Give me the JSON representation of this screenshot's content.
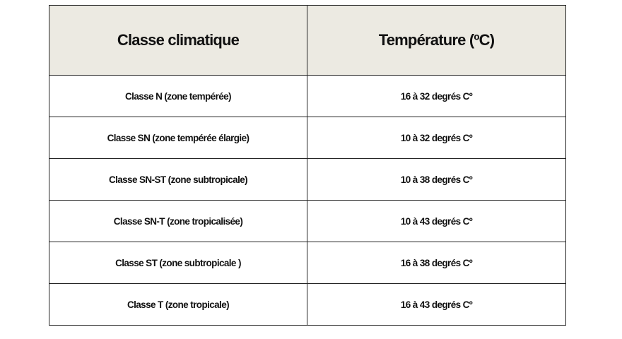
{
  "table": {
    "headers": [
      "Classe climatique",
      "Température (ºC)"
    ],
    "rows": [
      [
        "Classe N (zone tempérée)",
        "16 à 32 degrés Cº"
      ],
      [
        "Classe SN (zone tempérée élargie)",
        "10 à 32 degrés Cº"
      ],
      [
        "Classe SN-ST (zone subtropicale)",
        "10 à 38 degrés Cº"
      ],
      [
        "Classe SN-T (zone tropicalisée)",
        "10 à 43 degrés Cº"
      ],
      [
        "Classe ST (zone subtropicale )",
        "16 à 38 degrés Cº"
      ],
      [
        "Classe T (zone tropicale)",
        "16 à 43 degrés Cº"
      ]
    ]
  }
}
